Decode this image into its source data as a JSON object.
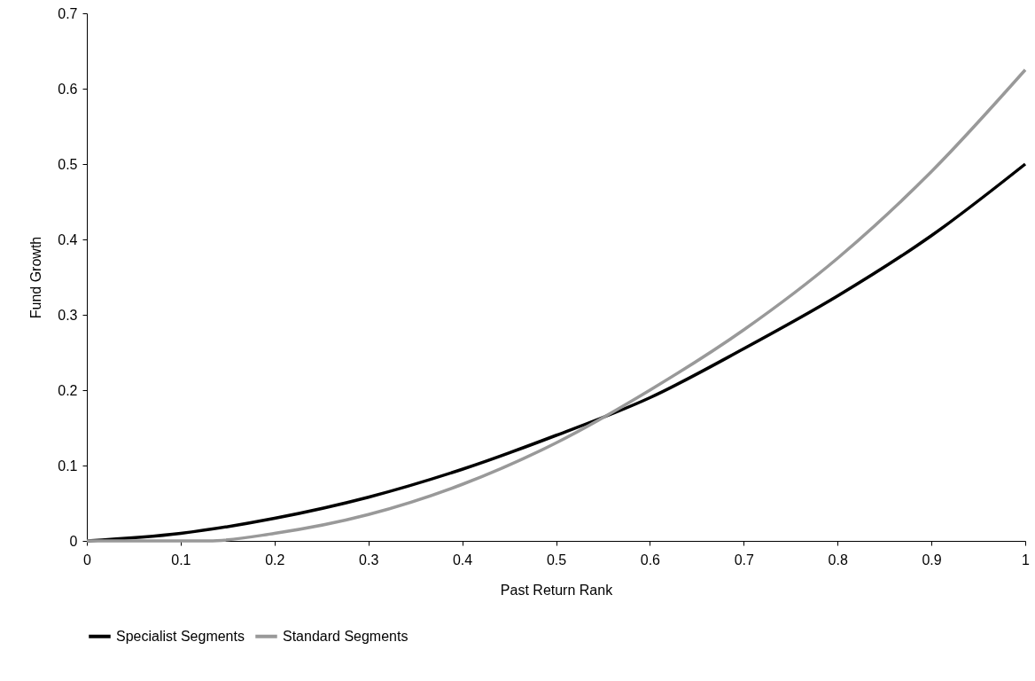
{
  "chart_data": {
    "type": "line",
    "xlabel": "Past Return Rank",
    "ylabel": "Fund Growth",
    "xlim": [
      0,
      1
    ],
    "ylim": [
      0,
      0.7
    ],
    "xticks": [
      0,
      0.1,
      0.2,
      0.3,
      0.4,
      0.5,
      0.6,
      0.7,
      0.8,
      0.9,
      1
    ],
    "yticks": [
      0,
      0.1,
      0.2,
      0.3,
      0.4,
      0.5,
      0.6,
      0.7
    ],
    "grid": false,
    "legend": "bottom",
    "marker": "none",
    "line_style": "solid",
    "x": [
      0,
      0.1,
      0.2,
      0.3,
      0.4,
      0.5,
      0.6,
      0.7,
      0.8,
      0.9,
      1
    ],
    "series": [
      {
        "name": "Specialist Segments",
        "color": "#000000",
        "values": [
          0,
          0.01,
          0.03,
          0.058,
          0.095,
          0.14,
          0.19,
          0.255,
          0.325,
          0.405,
          0.5
        ]
      },
      {
        "name": "Standard Segments",
        "color": "#999999",
        "x": [
          0,
          0.1,
          0.13,
          0.2,
          0.3,
          0.4,
          0.5,
          0.6,
          0.7,
          0.8,
          0.9,
          1
        ],
        "values": [
          0,
          0,
          0,
          0.01,
          0.035,
          0.075,
          0.13,
          0.2,
          0.28,
          0.375,
          0.49,
          0.625
        ]
      }
    ]
  }
}
